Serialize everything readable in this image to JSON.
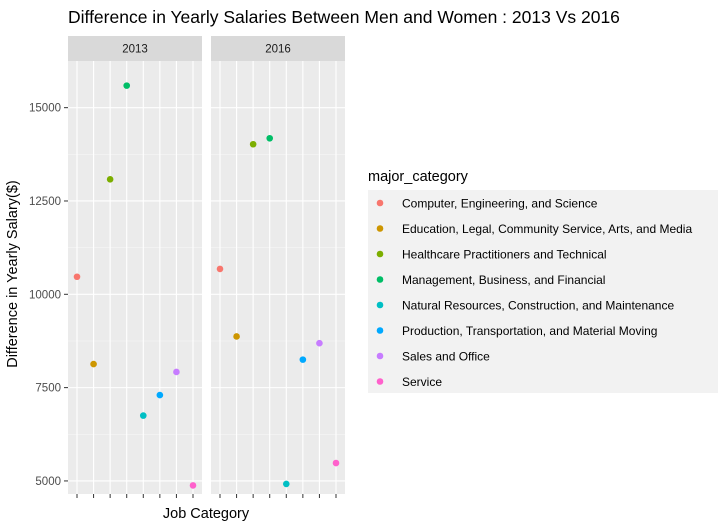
{
  "chart_data": {
    "type": "scatter",
    "title": "Difference in Yearly Salaries Between Men and Women : 2013 Vs 2016",
    "xlabel": "Job Category",
    "ylabel": "Difference in Yearly Salary($)",
    "ylim": [
      4650,
      16250
    ],
    "yticks": [
      5000,
      7500,
      10000,
      12500,
      15000
    ],
    "ytick_labels": [
      "5000",
      "7500",
      "10000",
      "12500",
      "15000"
    ],
    "grid": true,
    "legend_position": "right",
    "legend_title": "major_category",
    "panels": [
      "2013",
      "2016"
    ],
    "categories": [
      "Computer, Engineering, and Science",
      "Education, Legal, Community Service, Arts, and Media",
      "Healthcare Practitioners and Technical",
      "Management, Business, and Financial",
      "Natural Resources, Construction, and Maintenance",
      "Production, Transportation, and Material Moving",
      "Sales and Office",
      "Service"
    ],
    "colors": [
      "#F8766D",
      "#CD9600",
      "#7CAE00",
      "#00BE67",
      "#00BFC4",
      "#00A9FF",
      "#C77CFF",
      "#FF61CC"
    ],
    "series": [
      {
        "name": "2013",
        "values": [
          10470,
          8130,
          13080,
          15590,
          6750,
          7300,
          7920,
          4880
        ]
      },
      {
        "name": "2016",
        "values": [
          10680,
          8870,
          14020,
          14180,
          4920,
          8250,
          8690,
          5480
        ]
      }
    ]
  }
}
